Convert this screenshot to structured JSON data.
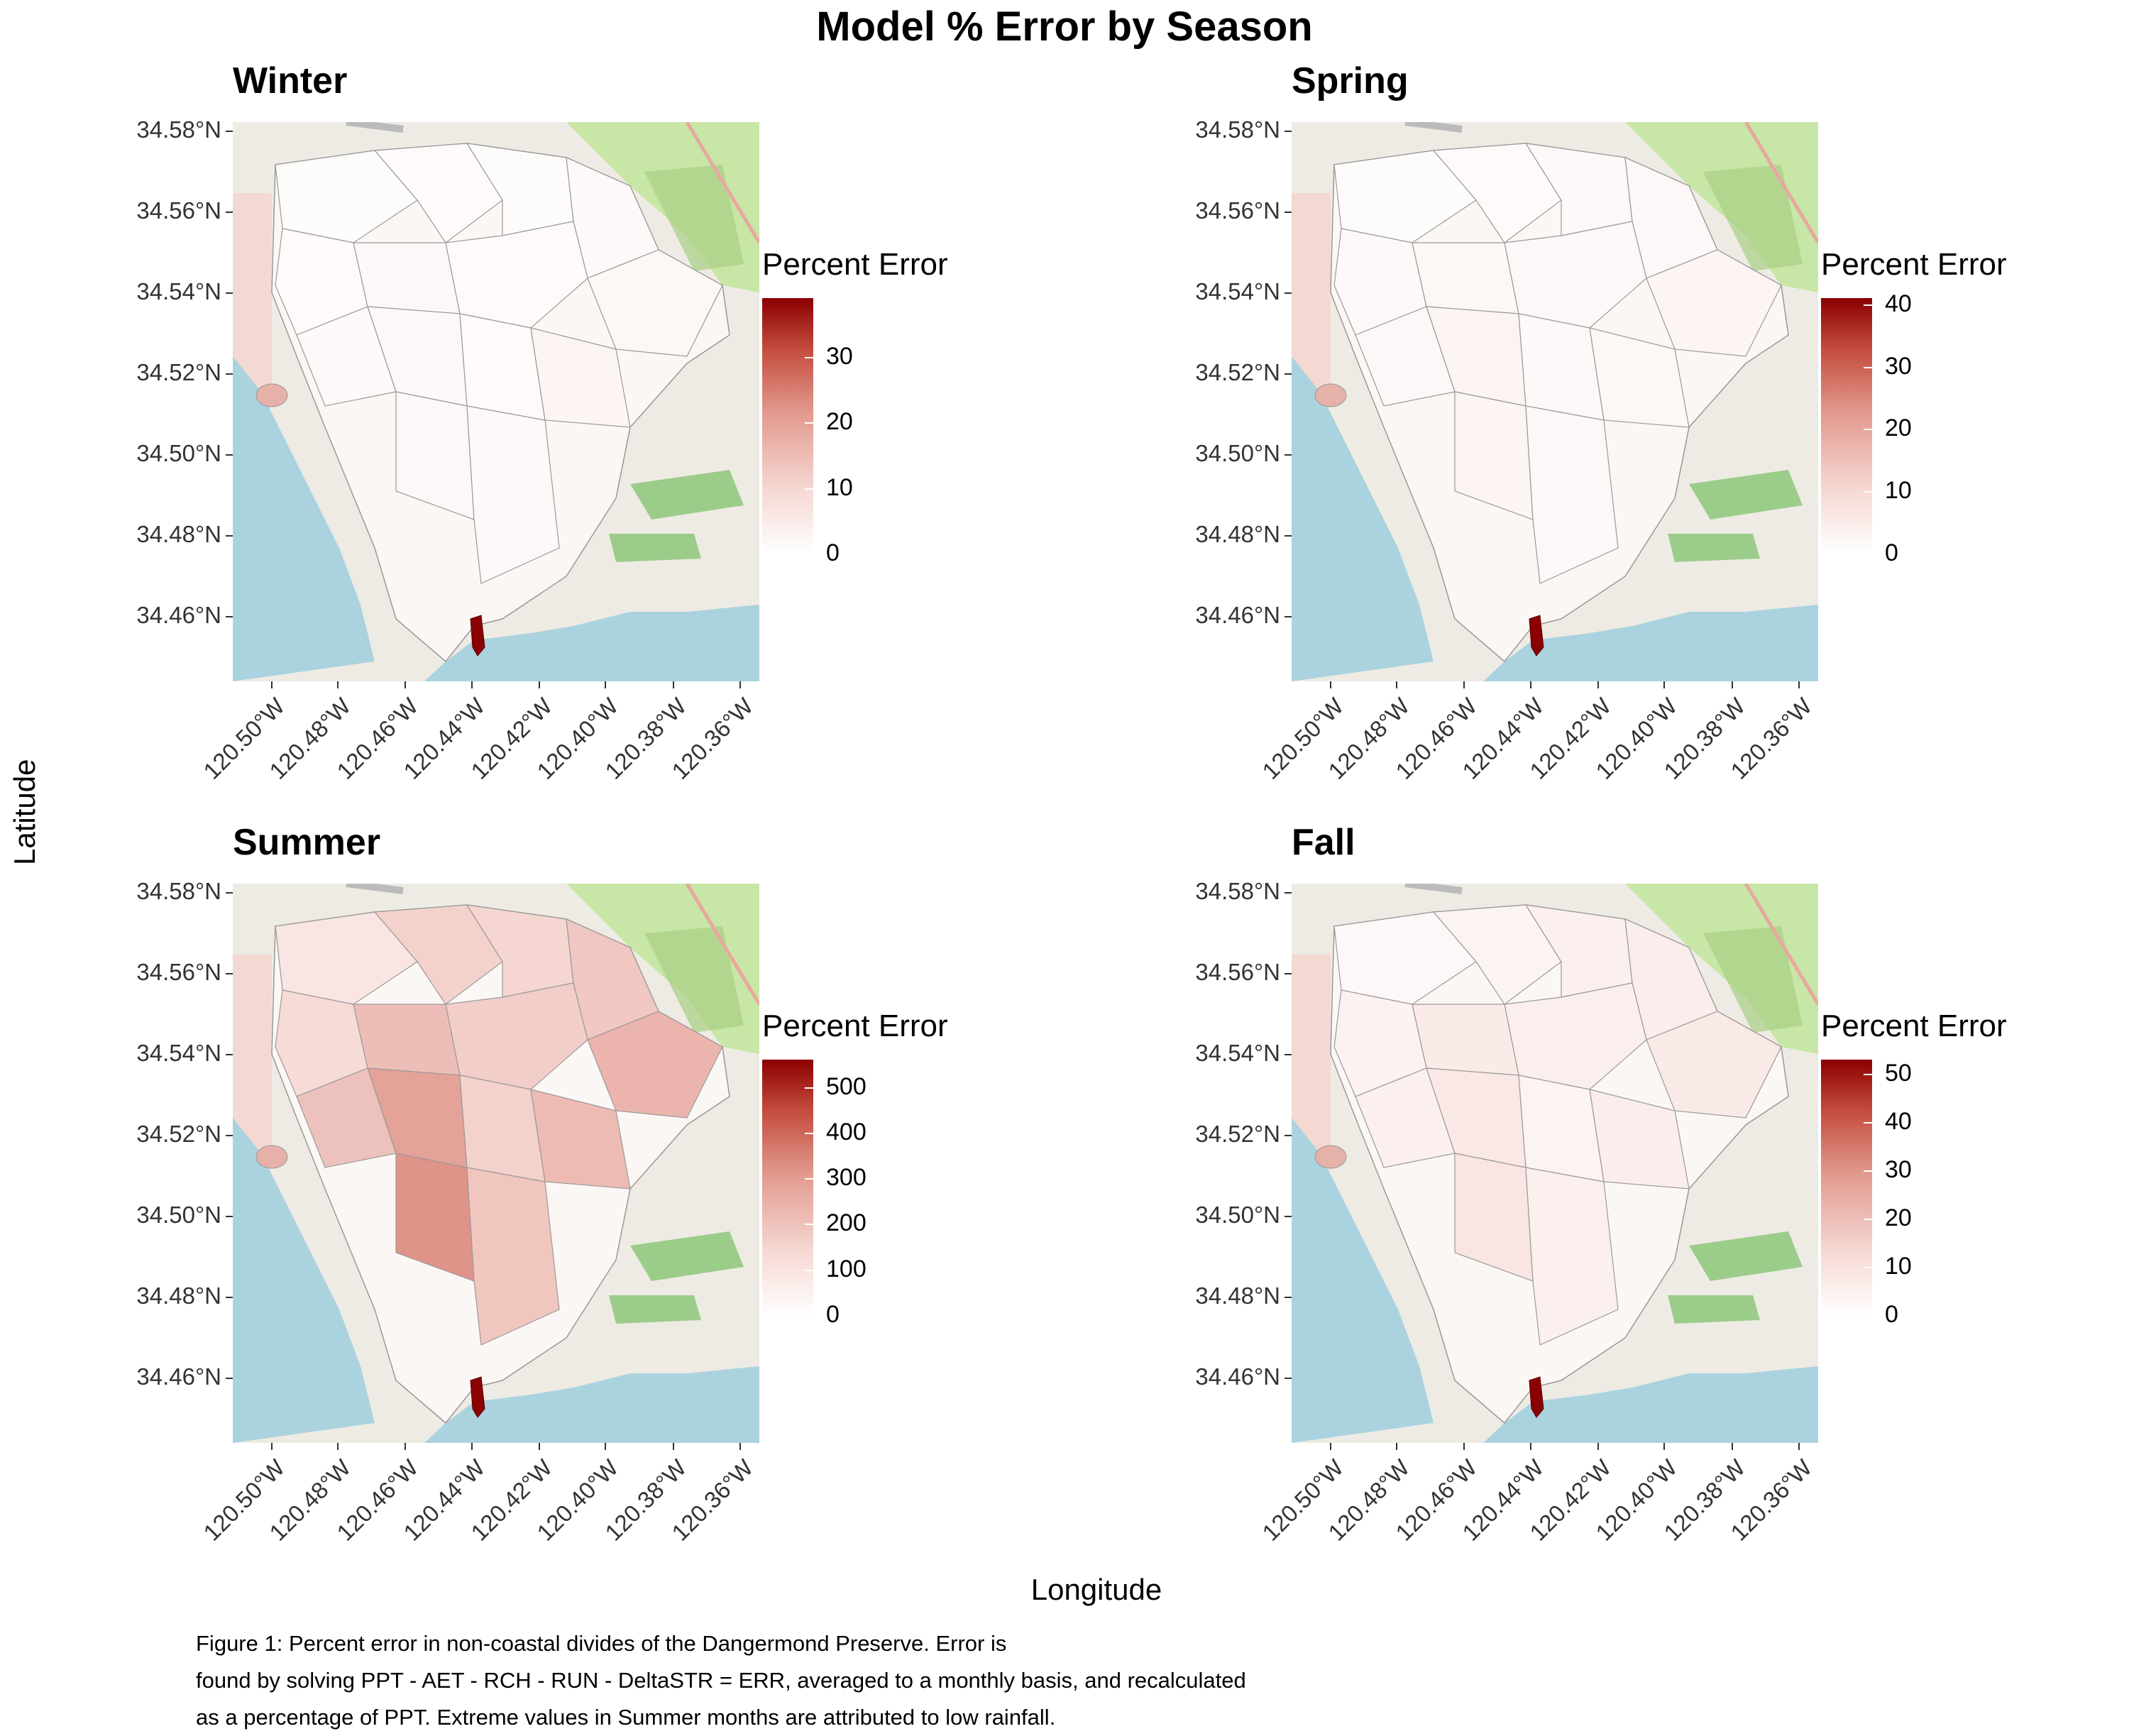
{
  "title": "Model % Error by Season",
  "xlabel": "Longitude",
  "ylabel": "Latitude",
  "caption": [
    "Figure 1: Percent error in non-coastal divides of the Dangermond Preserve. Error is",
    "found by solving PPT - AET - RCH - RUN - DeltaSTR = ERR, averaged to a monthly basis, and recalculated",
    "as a percentage of PPT. Extreme values in Summer months are attributed to low rainfall."
  ],
  "lat_ticks": [
    "34.58°N",
    "34.56°N",
    "34.54°N",
    "34.52°N",
    "34.50°N",
    "34.48°N",
    "34.46°N"
  ],
  "lon_ticks": [
    "120.50°W",
    "120.48°W",
    "120.46°W",
    "120.44°W",
    "120.42°W",
    "120.40°W",
    "120.38°W",
    "120.36°W"
  ],
  "colors": {
    "low": "#ffffff",
    "high": "#8b0000",
    "water": "#aad3df",
    "park": "#c8e6a5",
    "land": "#eeebe4"
  },
  "panels": [
    {
      "title": "Winter",
      "legend_title": "Percent Error",
      "legend_ticks": [
        "30",
        "20",
        "10",
        "0"
      ],
      "legend_max": 39,
      "hotspot_max": 39
    },
    {
      "title": "Spring",
      "legend_title": "Percent Error",
      "legend_ticks": [
        "40",
        "30",
        "20",
        "10",
        "0"
      ],
      "legend_max": 41,
      "hotspot_max": 41
    },
    {
      "title": "Summer",
      "legend_title": "Percent Error",
      "legend_ticks": [
        "500",
        "400",
        "300",
        "200",
        "100",
        "0"
      ],
      "legend_max": 560,
      "hotspot_max": 560
    },
    {
      "title": "Fall",
      "legend_title": "Percent Error",
      "legend_ticks": [
        "50",
        "40",
        "30",
        "20",
        "10",
        "0"
      ],
      "legend_max": 53,
      "hotspot_max": 53
    }
  ]
}
